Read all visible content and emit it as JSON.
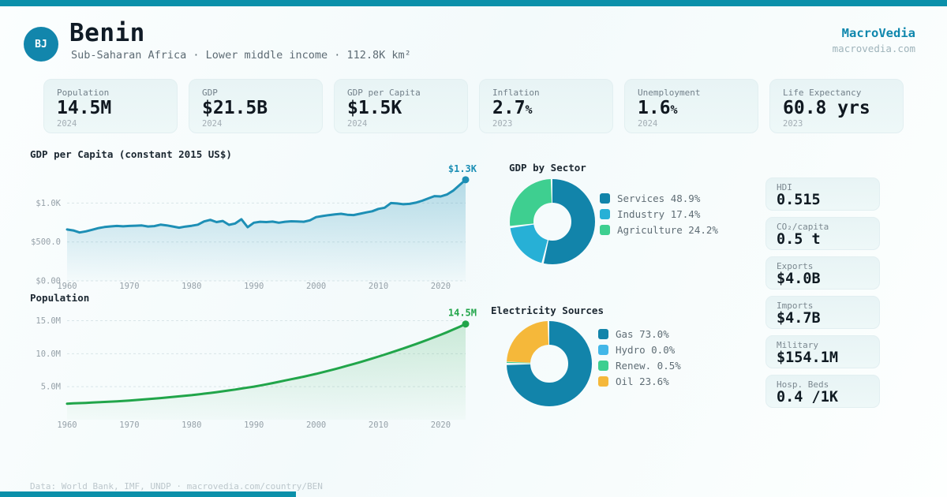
{
  "meta": {
    "brand": "MacroVedia",
    "domain": "macrovedia.com"
  },
  "header": {
    "country_code": "BJ",
    "country_name": "Benin",
    "subtitle": "Sub-Saharan Africa · Lower middle income · 112.8K km²"
  },
  "colors": {
    "accent_teal": "#0b90aa",
    "brand_teal": "#0f87ad",
    "line_blue": "#1d8fb5",
    "line_green": "#21a54a",
    "donut_dark_teal": "#1284aa",
    "donut_light_blue": "#27b0d6",
    "donut_hydro_blue": "#43b7e8",
    "donut_green": "#3ecf90",
    "donut_yellow": "#f5b83a",
    "card_bg": "#e9f4f5"
  },
  "stats": [
    {
      "label": "Population",
      "value": "14.5M",
      "unit": "",
      "year": "2024"
    },
    {
      "label": "GDP",
      "value": "$21.5B",
      "unit": "",
      "year": "2024"
    },
    {
      "label": "GDP per Capita",
      "value": "$1.5K",
      "unit": "",
      "year": "2024"
    },
    {
      "label": "Inflation",
      "value": "2.7",
      "unit": "%",
      "year": "2023"
    },
    {
      "label": "Unemployment",
      "value": "1.6",
      "unit": "%",
      "year": "2024"
    },
    {
      "label": "Life Expectancy",
      "value": "60.8 yrs",
      "unit": "",
      "year": "2023"
    }
  ],
  "kpis": [
    {
      "label": "HDI",
      "value": "0.515"
    },
    {
      "label": "CO₂/capita",
      "value": "0.5 t"
    },
    {
      "label": "Exports",
      "value": "$4.0B"
    },
    {
      "label": "Imports",
      "value": "$4.7B"
    },
    {
      "label": "Military",
      "value": "$154.1M"
    },
    {
      "label": "Hosp. Beds",
      "value": "0.4 /1K"
    }
  ],
  "footer": {
    "text": "Data: World Bank, IMF, UNDP · macrovedia.com/country/BEN"
  },
  "chart_data": [
    {
      "id": "gdp_per_capita",
      "type": "line",
      "title": "GDP per Capita (constant 2015 US$)",
      "x_start": 1960,
      "x_step": 1,
      "values": [
        660,
        648,
        622,
        636,
        656,
        678,
        692,
        700,
        706,
        701,
        706,
        709,
        712,
        699,
        704,
        722,
        713,
        699,
        684,
        698,
        708,
        722,
        764,
        784,
        756,
        770,
        720,
        738,
        792,
        690,
        748,
        760,
        756,
        762,
        748,
        760,
        766,
        764,
        760,
        778,
        820,
        833,
        845,
        855,
        862,
        850,
        846,
        862,
        880,
        895,
        925,
        940,
        1000,
        995,
        985,
        990,
        1005,
        1030,
        1060,
        1090,
        1085,
        1110,
        1160,
        1230,
        1300
      ],
      "ylim": [
        0,
        1400
      ],
      "yticks": [
        {
          "v": 0,
          "label": "$0.00"
        },
        {
          "v": 500,
          "label": "$500.0"
        },
        {
          "v": 1000,
          "label": "$1.0K"
        }
      ],
      "xticks": [
        1960,
        1970,
        1980,
        1990,
        2000,
        2010,
        2020
      ],
      "end_label": "$1.3K",
      "color": "#1d8fb5",
      "fill_from": "rgba(29,143,181,0.30)",
      "fill_to": "rgba(29,143,181,0.02)",
      "grid": true,
      "legend_position": "none"
    },
    {
      "id": "population",
      "type": "line",
      "title": "Population",
      "x_start": 1960,
      "x_step": 1,
      "values": [
        2.43,
        2.47,
        2.51,
        2.55,
        2.6,
        2.64,
        2.69,
        2.74,
        2.79,
        2.85,
        2.91,
        2.98,
        3.05,
        3.12,
        3.2,
        3.28,
        3.36,
        3.45,
        3.54,
        3.63,
        3.72,
        3.83,
        3.94,
        4.05,
        4.17,
        4.3,
        4.43,
        4.57,
        4.72,
        4.87,
        5.01,
        5.18,
        5.36,
        5.55,
        5.74,
        5.94,
        6.13,
        6.32,
        6.52,
        6.73,
        6.95,
        7.18,
        7.42,
        7.67,
        7.92,
        8.18,
        8.44,
        8.71,
        8.99,
        9.28,
        9.57,
        9.87,
        10.17,
        10.48,
        10.8,
        11.13,
        11.46,
        11.8,
        12.15,
        12.51,
        12.87,
        13.25,
        13.65,
        14.06,
        14.5
      ],
      "ylim": [
        0,
        16.5
      ],
      "yticks": [
        {
          "v": 5,
          "label": "5.0M"
        },
        {
          "v": 10,
          "label": "10.0M"
        },
        {
          "v": 15,
          "label": "15.0M"
        }
      ],
      "xticks": [
        1960,
        1970,
        1980,
        1990,
        2000,
        2010,
        2020
      ],
      "end_label": "14.5M",
      "color": "#21a54a",
      "fill_from": "rgba(33,165,74,0.20)",
      "fill_to": "rgba(33,165,74,0.02)",
      "grid": true,
      "legend_position": "none"
    },
    {
      "id": "gdp_by_sector",
      "type": "pie",
      "title": "GDP by Sector",
      "segments": [
        {
          "label": "Services",
          "value": 48.9,
          "color": "#1284aa"
        },
        {
          "label": "Industry",
          "value": 17.4,
          "color": "#27b0d6"
        },
        {
          "label": "Agriculture",
          "value": 24.2,
          "color": "#3ecf90"
        }
      ],
      "legend_position": "right"
    },
    {
      "id": "electricity_sources",
      "type": "pie",
      "title": "Electricity Sources",
      "segments": [
        {
          "label": "Gas",
          "value": 73.0,
          "color": "#1284aa"
        },
        {
          "label": "Hydro",
          "value": 0.0,
          "color": "#43b7e8"
        },
        {
          "label": "Renew.",
          "value": 0.5,
          "color": "#3ecf90"
        },
        {
          "label": "Oil",
          "value": 23.6,
          "color": "#f5b83a"
        }
      ],
      "legend_position": "right"
    }
  ]
}
